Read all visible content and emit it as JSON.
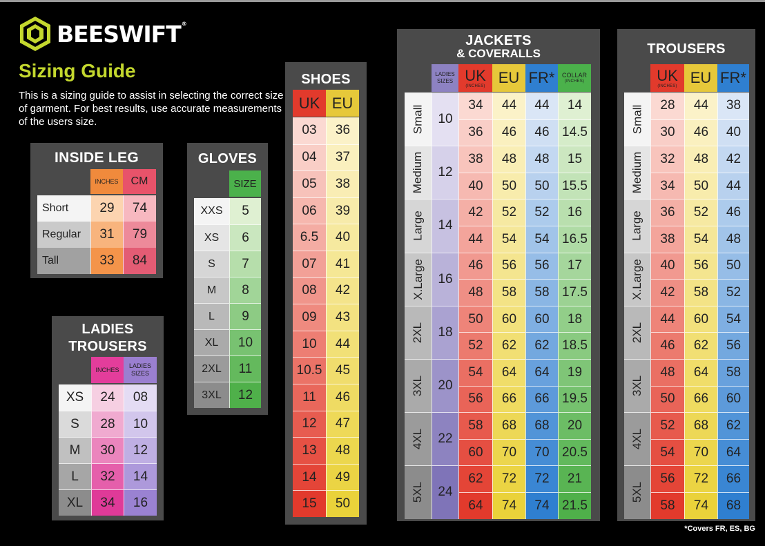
{
  "brand": {
    "name": "BEESWIFT",
    "reg": "®",
    "logo_icon": "hexagon-bee-logo-icon",
    "accent_color": "#c4d82e"
  },
  "guide": {
    "title": "Sizing Guide",
    "intro": "This is a sizing guide to assist in selecting the correct size of garment. For best results, use accurate measurements of the users size."
  },
  "inside_leg": {
    "title": "INSIDE LEG",
    "headers": [
      "INCHES",
      "CM"
    ],
    "rows": [
      {
        "label": "Short",
        "inches": "29",
        "cm": "74"
      },
      {
        "label": "Regular",
        "inches": "31",
        "cm": "79"
      },
      {
        "label": "Tall",
        "inches": "33",
        "cm": "84"
      }
    ]
  },
  "ladies_trousers": {
    "title_line1": "LADIES",
    "title_line2": "TROUSERS",
    "headers": [
      "INCHES",
      "LADIES SIZES"
    ],
    "rows": [
      {
        "label": "XS",
        "inches": "24",
        "ladies": "08"
      },
      {
        "label": "S",
        "inches": "28",
        "ladies": "10"
      },
      {
        "label": "M",
        "inches": "30",
        "ladies": "12"
      },
      {
        "label": "L",
        "inches": "32",
        "ladies": "14"
      },
      {
        "label": "XL",
        "inches": "34",
        "ladies": "16"
      }
    ]
  },
  "gloves": {
    "title": "GLOVES",
    "header": "SIZE",
    "rows": [
      {
        "label": "XXS",
        "size": "5"
      },
      {
        "label": "XS",
        "size": "6"
      },
      {
        "label": "S",
        "size": "7"
      },
      {
        "label": "M",
        "size": "8"
      },
      {
        "label": "L",
        "size": "9"
      },
      {
        "label": "XL",
        "size": "10"
      },
      {
        "label": "2XL",
        "size": "11"
      },
      {
        "label": "3XL",
        "size": "12"
      }
    ]
  },
  "shoes": {
    "title": "SHOES",
    "headers": [
      "UK",
      "EU"
    ],
    "rows": [
      {
        "uk": "03",
        "eu": "36"
      },
      {
        "uk": "04",
        "eu": "37"
      },
      {
        "uk": "05",
        "eu": "38"
      },
      {
        "uk": "06",
        "eu": "39"
      },
      {
        "uk": "6.5",
        "eu": "40"
      },
      {
        "uk": "07",
        "eu": "41"
      },
      {
        "uk": "08",
        "eu": "42"
      },
      {
        "uk": "09",
        "eu": "43"
      },
      {
        "uk": "10",
        "eu": "44"
      },
      {
        "uk": "10.5",
        "eu": "45"
      },
      {
        "uk": "11",
        "eu": "46"
      },
      {
        "uk": "12",
        "eu": "47"
      },
      {
        "uk": "13",
        "eu": "48"
      },
      {
        "uk": "14",
        "eu": "49"
      },
      {
        "uk": "15",
        "eu": "50"
      }
    ]
  },
  "jackets": {
    "title_line1": "JACKETS",
    "title_line2": "& COVERALLS",
    "headers": {
      "ladies": "LADIES SIZES",
      "uk": "UK",
      "uk_sub": "(INCHES)",
      "eu": "EU",
      "fr": "FR*",
      "collar": "COLLAR",
      "collar_sub": "(INCHES)"
    },
    "groups": [
      {
        "size": "Small",
        "ladies": "10"
      },
      {
        "size": "Medium",
        "ladies": "12"
      },
      {
        "size": "Large",
        "ladies": "14"
      },
      {
        "size": "X.Large",
        "ladies": "16"
      },
      {
        "size": "2XL",
        "ladies": "18"
      },
      {
        "size": "3XL",
        "ladies": "20"
      },
      {
        "size": "4XL",
        "ladies": "22"
      },
      {
        "size": "5XL",
        "ladies": "24"
      }
    ],
    "rows": [
      {
        "uk": "34",
        "eu": "44",
        "fr": "44",
        "collar": "14"
      },
      {
        "uk": "36",
        "eu": "46",
        "fr": "46",
        "collar": "14.5"
      },
      {
        "uk": "38",
        "eu": "48",
        "fr": "48",
        "collar": "15"
      },
      {
        "uk": "40",
        "eu": "50",
        "fr": "50",
        "collar": "15.5"
      },
      {
        "uk": "42",
        "eu": "52",
        "fr": "52",
        "collar": "16"
      },
      {
        "uk": "44",
        "eu": "54",
        "fr": "54",
        "collar": "16.5"
      },
      {
        "uk": "46",
        "eu": "56",
        "fr": "56",
        "collar": "17"
      },
      {
        "uk": "48",
        "eu": "58",
        "fr": "58",
        "collar": "17.5"
      },
      {
        "uk": "50",
        "eu": "60",
        "fr": "60",
        "collar": "18"
      },
      {
        "uk": "52",
        "eu": "62",
        "fr": "62",
        "collar": "18.5"
      },
      {
        "uk": "54",
        "eu": "64",
        "fr": "64",
        "collar": "19"
      },
      {
        "uk": "56",
        "eu": "66",
        "fr": "66",
        "collar": "19.5"
      },
      {
        "uk": "58",
        "eu": "68",
        "fr": "68",
        "collar": "20"
      },
      {
        "uk": "60",
        "eu": "70",
        "fr": "70",
        "collar": "20.5"
      },
      {
        "uk": "62",
        "eu": "72",
        "fr": "72",
        "collar": "21"
      },
      {
        "uk": "64",
        "eu": "74",
        "fr": "74",
        "collar": "21.5"
      }
    ]
  },
  "trousers": {
    "title": "TROUSERS",
    "headers": {
      "uk": "UK",
      "uk_sub": "(INCHES)",
      "eu": "EU",
      "fr": "FR*"
    },
    "groups": [
      "Small",
      "Medium",
      "Large",
      "X.Large",
      "2XL",
      "3XL",
      "4XL",
      "5XL"
    ],
    "rows": [
      {
        "uk": "28",
        "eu": "44",
        "fr": "38"
      },
      {
        "uk": "30",
        "eu": "46",
        "fr": "40"
      },
      {
        "uk": "32",
        "eu": "48",
        "fr": "42"
      },
      {
        "uk": "34",
        "eu": "50",
        "fr": "44"
      },
      {
        "uk": "36",
        "eu": "52",
        "fr": "46"
      },
      {
        "uk": "38",
        "eu": "54",
        "fr": "48"
      },
      {
        "uk": "40",
        "eu": "56",
        "fr": "50"
      },
      {
        "uk": "42",
        "eu": "58",
        "fr": "52"
      },
      {
        "uk": "44",
        "eu": "60",
        "fr": "54"
      },
      {
        "uk": "46",
        "eu": "62",
        "fr": "56"
      },
      {
        "uk": "48",
        "eu": "64",
        "fr": "58"
      },
      {
        "uk": "50",
        "eu": "66",
        "fr": "60"
      },
      {
        "uk": "52",
        "eu": "68",
        "fr": "62"
      },
      {
        "uk": "54",
        "eu": "70",
        "fr": "64"
      },
      {
        "uk": "56",
        "eu": "72",
        "fr": "66"
      },
      {
        "uk": "58",
        "eu": "74",
        "fr": "68"
      }
    ]
  },
  "footnote": "*Covers FR, ES, BG"
}
